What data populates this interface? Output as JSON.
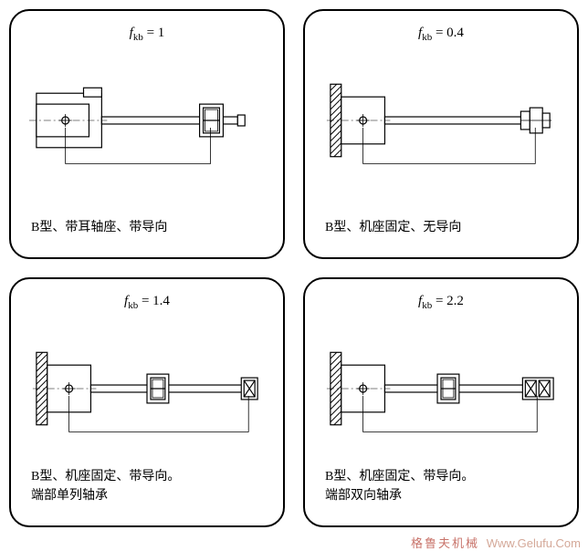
{
  "stroke": "#000000",
  "bg": "#ffffff",
  "watermark_cn": "格鲁夫机械",
  "watermark_en": "Www.Gelufu.Com",
  "panels": [
    {
      "fkb": "1",
      "caption_lines": [
        "B型、带耳轴座、带导向"
      ],
      "svg_type": "ear_with_guide"
    },
    {
      "fkb": "0.4",
      "caption_lines": [
        "B型、机座固定、无导向"
      ],
      "svg_type": "fixed_no_guide"
    },
    {
      "fkb": "1.4",
      "caption_lines": [
        "B型、机座固定、带导向。",
        "端部单列轴承"
      ],
      "svg_type": "fixed_single_bearing"
    },
    {
      "fkb": "2.2",
      "caption_lines": [
        "B型、机座固定、带导向。",
        "端部双向轴承"
      ],
      "svg_type": "fixed_double_bearing"
    }
  ]
}
